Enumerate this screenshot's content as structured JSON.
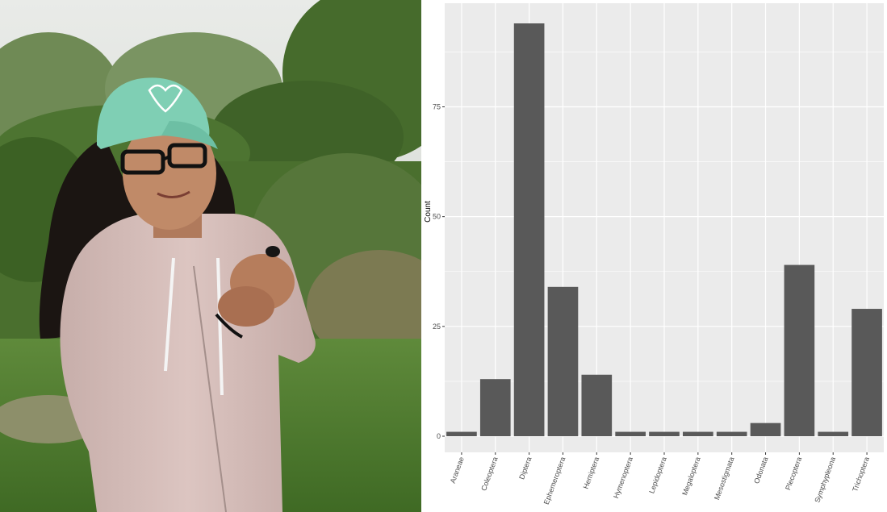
{
  "photo": {
    "subject": "person in pink hoodie and mint-green cap holding a small insect outdoors"
  },
  "chart_data": {
    "type": "bar",
    "title": "",
    "xlabel": "",
    "ylabel": "Count",
    "categories": [
      "Araneae",
      "Coleoptera",
      "Diptera",
      "Ephemeroptera",
      "Hemiptera",
      "Hymenoptera",
      "Lepidoptera",
      "Megaloptera",
      "Mesostigmata",
      "Odonata",
      "Plecoptera",
      "Symphypleona",
      "Trichoptera"
    ],
    "values": [
      1,
      13,
      94,
      34,
      14,
      1,
      1,
      1,
      1,
      3,
      39,
      1,
      29
    ],
    "ylim": [
      0,
      99
    ],
    "yticks": [
      0,
      25,
      50,
      75
    ],
    "grid": true,
    "legend": "none",
    "colors": {
      "bar": "#595959",
      "panel": "#ebebeb",
      "grid": "#ffffff"
    }
  }
}
